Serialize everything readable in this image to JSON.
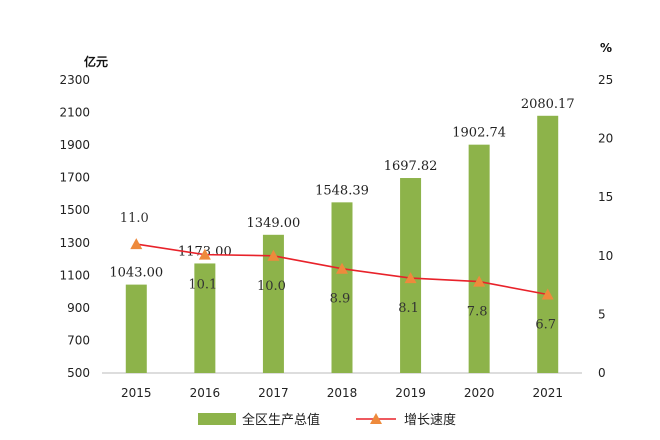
{
  "chart_data": {
    "type": "bar",
    "categories": [
      "2015",
      "2016",
      "2017",
      "2018",
      "2019",
      "2020",
      "2021"
    ],
    "series": [
      {
        "name": "全区生产总值",
        "kind": "bar",
        "axis": "left",
        "color": "#8db34a",
        "values": [
          1043.0,
          1173.0,
          1349.0,
          1548.39,
          1697.82,
          1902.74,
          2080.17
        ],
        "labels": [
          "1043.00",
          "1173.00",
          "1349.00",
          "1548.39",
          "1697.82",
          "1902.74",
          "2080.17"
        ]
      },
      {
        "name": "增长速度",
        "kind": "line",
        "axis": "right",
        "color": "#e8222a",
        "marker_color": "#ee8a3c",
        "values": [
          11.0,
          10.1,
          10.0,
          8.9,
          8.1,
          7.8,
          6.7
        ],
        "labels": [
          "11.0",
          "10.1",
          "10.0",
          "8.9",
          "8.1",
          "7.8",
          "6.7"
        ]
      }
    ],
    "y_left": {
      "unit": "亿元",
      "ylim": [
        500,
        2300
      ],
      "ticks": [
        "500",
        "700",
        "900",
        "1100",
        "1300",
        "1500",
        "1700",
        "1900",
        "2100",
        "2300"
      ]
    },
    "y_right": {
      "unit": "%",
      "ylim": [
        0,
        25
      ],
      "ticks": [
        "0",
        "5",
        "10",
        "15",
        "20",
        "25"
      ]
    },
    "grid": false,
    "legend_position": "bottom"
  }
}
